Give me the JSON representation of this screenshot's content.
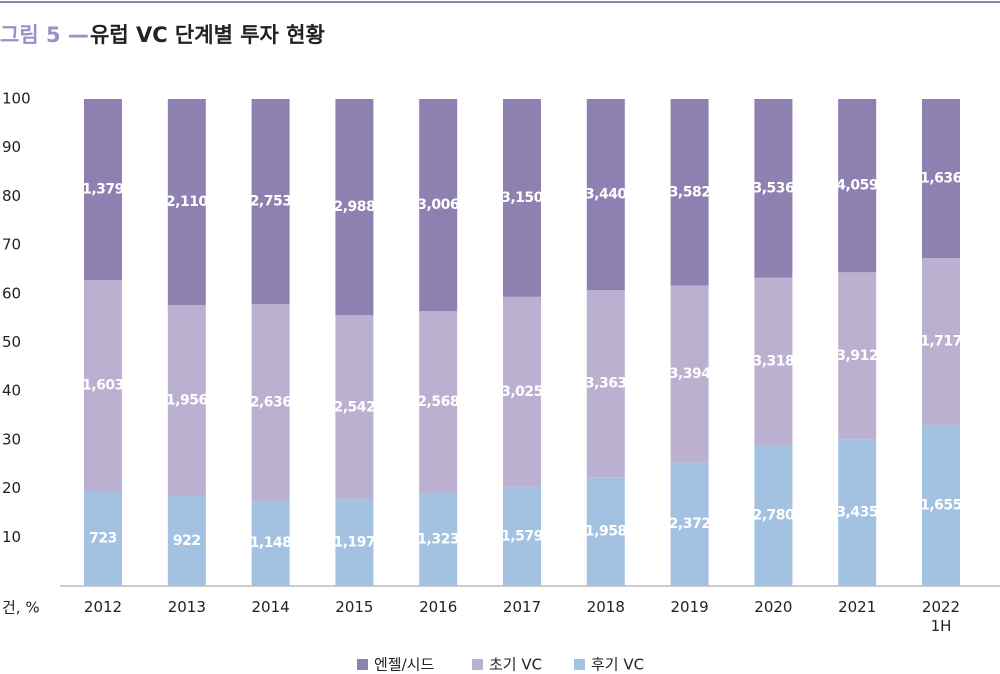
{
  "chart_data": {
    "type": "bar",
    "stacked": "percent",
    "figure_label": "그림 5 —",
    "title": "유럽 VC 단계별 투자 현황",
    "y_label": "건, %",
    "categories": [
      "2012",
      "2013",
      "2014",
      "2015",
      "2016",
      "2017",
      "2018",
      "2019",
      "2020",
      "2021",
      "2022 1H"
    ],
    "series": [
      {
        "name": "엔젤/시드",
        "color": "#8e80b0",
        "values": [
          1379,
          2110,
          2753,
          2988,
          3006,
          3150,
          3440,
          3582,
          3536,
          4059,
          1636
        ],
        "value_labels": [
          "1,379",
          "2,110",
          "2,753",
          "2,988",
          "3,006",
          "3,150",
          "3,440",
          "3,582",
          "3,536",
          "4,059",
          "1,636"
        ]
      },
      {
        "name": "초기 VC",
        "color": "#bcb0d0",
        "values": [
          1603,
          1956,
          2636,
          2542,
          2568,
          3025,
          3363,
          3394,
          3318,
          3912,
          1717
        ],
        "value_labels": [
          "1,603",
          "1,956",
          "2,636",
          "2,542",
          "2,568",
          "3,025",
          "3,363",
          "3,394",
          "3,318",
          "3,912",
          "1,717"
        ]
      },
      {
        "name": "후기 VC",
        "color": "#a3c2e2",
        "values": [
          723,
          922,
          1148,
          1197,
          1323,
          1579,
          1958,
          2372,
          2780,
          3435,
          1655
        ],
        "value_labels": [
          "723",
          "922",
          "1,148",
          "1,197",
          "1,323",
          "1,579",
          "1,958",
          "2,372",
          "2,780",
          "3,435",
          "1,655"
        ]
      }
    ],
    "ylim": [
      0,
      100
    ],
    "yticks": [
      10,
      20,
      30,
      40,
      50,
      60,
      70,
      80,
      90,
      100
    ]
  }
}
